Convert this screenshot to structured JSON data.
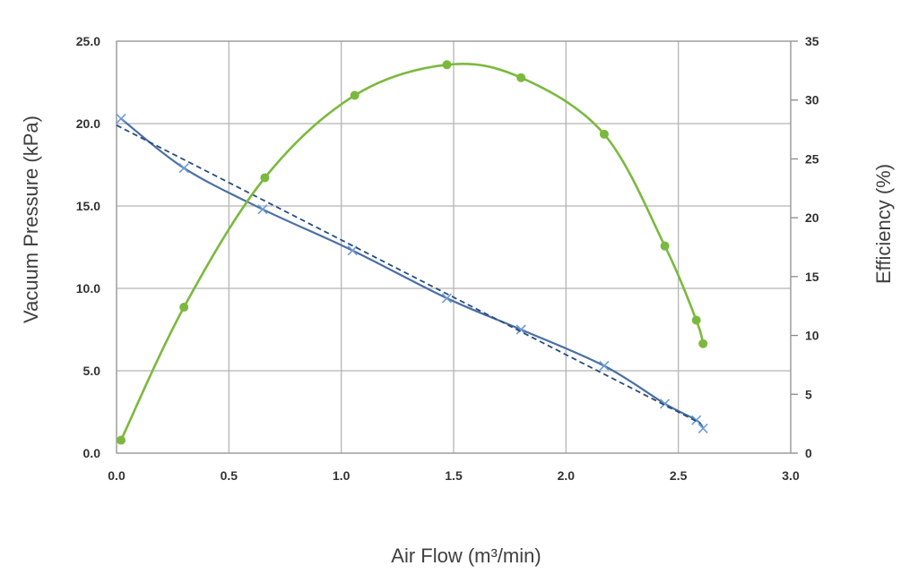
{
  "chart_data": {
    "type": "line",
    "title": "",
    "xlabel": "Air Flow (m³/min)",
    "ylabel": "Vacuum Pressure (kPa)",
    "y2label": "Efficiency (%)",
    "xlim": [
      0,
      3
    ],
    "ylim": [
      0,
      25
    ],
    "y2lim": [
      0,
      35
    ],
    "x_ticks": [
      "0.0",
      "0.5",
      "1.0",
      "1.5",
      "2.0",
      "2.5",
      "3.0"
    ],
    "y_ticks": [
      "0.0",
      "5.0",
      "10.0",
      "15.0",
      "20.0",
      "25.0"
    ],
    "y2_ticks": [
      "0",
      "5",
      "10",
      "15",
      "20",
      "25",
      "30",
      "35"
    ],
    "grid": true,
    "legend": "none",
    "series": [
      {
        "axis": "left",
        "marker": "x",
        "color": "#4a6fa5",
        "points": [
          [
            0.02,
            20.3
          ],
          [
            0.3,
            17.3
          ],
          [
            0.65,
            14.8
          ],
          [
            1.05,
            12.3
          ],
          [
            1.47,
            9.4
          ],
          [
            1.8,
            7.5
          ],
          [
            2.17,
            5.3
          ],
          [
            2.44,
            3.0
          ],
          [
            2.58,
            2.0
          ],
          [
            2.61,
            1.5
          ]
        ]
      },
      {
        "axis": "left",
        "style": "dashed",
        "color": "#2a4d7a",
        "points": [
          [
            0.0,
            19.9
          ],
          [
            2.6,
            1.8
          ]
        ]
      },
      {
        "axis": "right",
        "marker": "circle",
        "color": "#7bb93e",
        "points": [
          [
            0.02,
            1.1
          ],
          [
            0.3,
            12.4
          ],
          [
            0.66,
            23.4
          ],
          [
            1.06,
            30.4
          ],
          [
            1.47,
            33.0
          ],
          [
            1.8,
            31.9
          ],
          [
            2.17,
            27.1
          ],
          [
            2.44,
            17.6
          ],
          [
            2.58,
            11.3
          ],
          [
            2.61,
            9.3
          ]
        ]
      }
    ]
  }
}
